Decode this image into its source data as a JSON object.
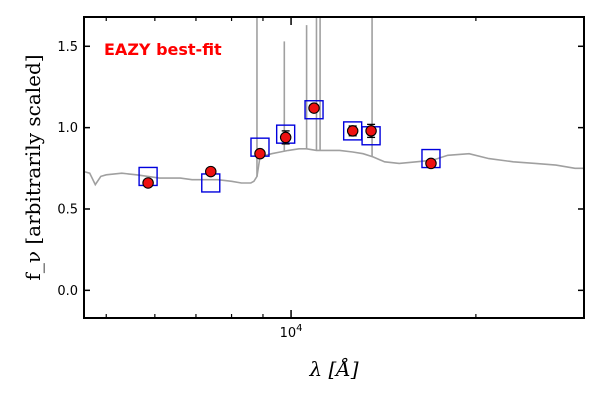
{
  "chart_data": {
    "type": "scatter",
    "title": "EAZY best-fit",
    "title_color": "#ff0000",
    "xlabel": "λ [Å]",
    "ylabel": "f_ν [arbitrarily scaled]",
    "x_scale": "log",
    "xlim": [
      4600,
      30000
    ],
    "ylim": [
      -0.17,
      1.68
    ],
    "y_ticks": [
      0.0,
      0.5,
      1.0,
      1.5
    ],
    "y_tick_labels": [
      "0.0",
      "0.5",
      "1.0",
      "1.5"
    ],
    "x_tick_labels": [
      {
        "value": 10000,
        "label": "10^4"
      }
    ],
    "grid": false,
    "colors": {
      "observed_fill": "#ee1111",
      "observed_edge": "#000000",
      "model_box": "#0000dd",
      "template": "#a0a0a0"
    },
    "series": [
      {
        "name": "",
        "role": "observed-photometry",
        "x": [
          5850,
          7400,
          8900,
          9800,
          10900,
          12600,
          13500,
          16900
        ],
        "y": [
          0.66,
          0.73,
          0.84,
          0.94,
          1.12,
          0.98,
          0.98,
          0.78
        ],
        "yerr": [
          0.01,
          0.01,
          0.02,
          0.04,
          0.02,
          0.03,
          0.04,
          0.015
        ]
      },
      {
        "name": "",
        "role": "model-photometry",
        "x": [
          5850,
          7400,
          8900,
          9800,
          10900,
          12600,
          13500,
          16900
        ],
        "y": [
          0.7,
          0.66,
          0.88,
          0.96,
          1.11,
          0.98,
          0.95,
          0.81
        ]
      },
      {
        "name": "",
        "role": "best-fit-template",
        "x": [
          4600,
          4700,
          4800,
          4900,
          5000,
          5300,
          5600,
          5850,
          6100,
          6300,
          6600,
          6900,
          7200,
          7600,
          8000,
          8300,
          8600,
          8700,
          8800,
          8900,
          9300,
          9600,
          9900,
          10300,
          10600,
          11000,
          11500,
          12000,
          12600,
          13100,
          13600,
          14200,
          15000,
          16000,
          17000,
          18000,
          19500,
          21000,
          23000,
          25000,
          27000,
          29000,
          30000
        ],
        "y": [
          0.73,
          0.72,
          0.65,
          0.7,
          0.71,
          0.72,
          0.71,
          0.7,
          0.69,
          0.69,
          0.69,
          0.68,
          0.68,
          0.68,
          0.67,
          0.66,
          0.66,
          0.67,
          0.7,
          0.82,
          0.84,
          0.85,
          0.86,
          0.87,
          0.87,
          0.86,
          0.86,
          0.86,
          0.85,
          0.84,
          0.82,
          0.79,
          0.78,
          0.79,
          0.8,
          0.83,
          0.84,
          0.81,
          0.79,
          0.78,
          0.77,
          0.75,
          0.75
        ],
        "emission_lines": [
          {
            "x": 8800,
            "peak": 1.68
          },
          {
            "x": 9750,
            "peak": 1.53
          },
          {
            "x": 10600,
            "peak": 1.63
          },
          {
            "x": 11000,
            "peak": 1.68
          },
          {
            "x": 11150,
            "peak": 1.68
          },
          {
            "x": 13550,
            "peak": 1.68
          }
        ]
      }
    ]
  }
}
